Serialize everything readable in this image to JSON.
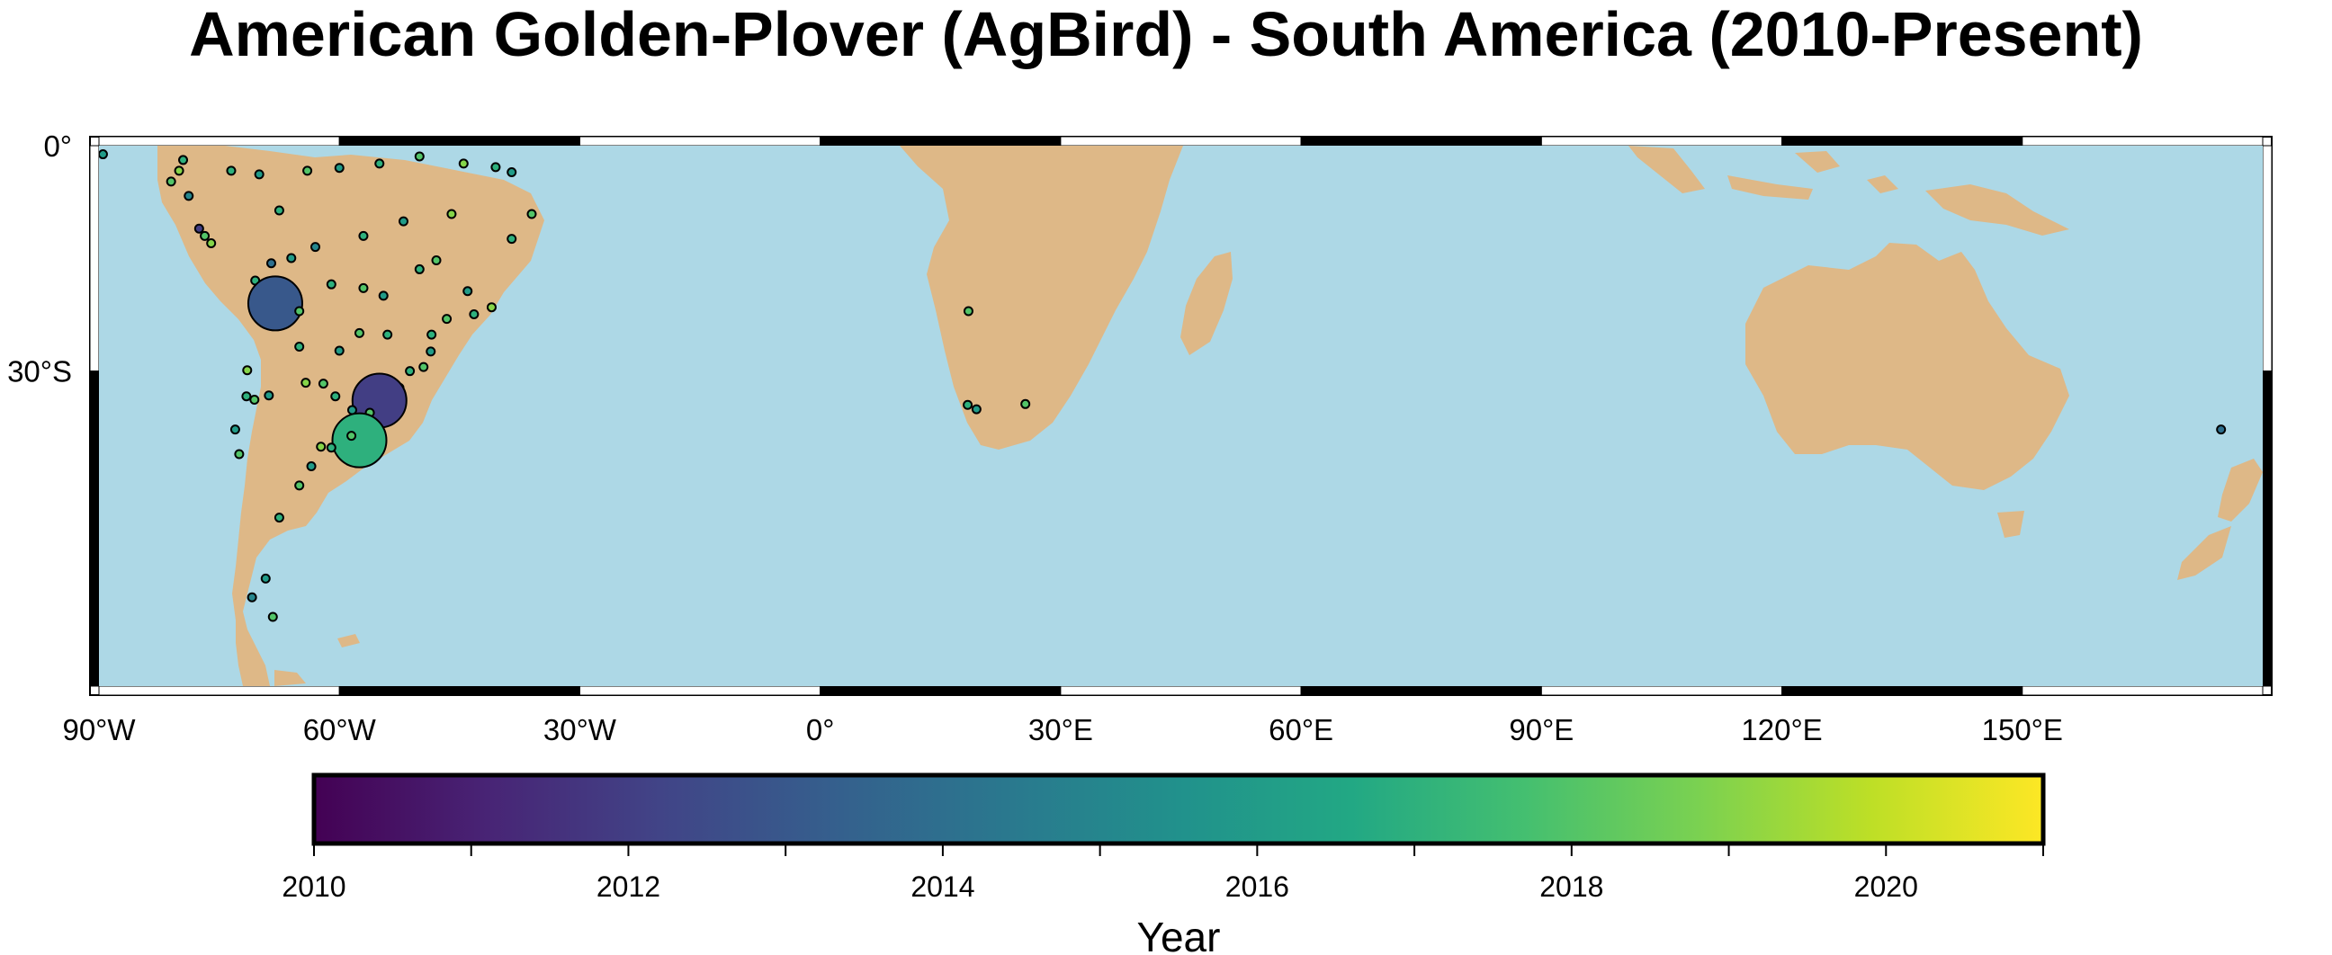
{
  "title": "American Golden-Plover (AgBird) - South America (2010-Present)",
  "map": {
    "projection": "Mercator",
    "lon_range": [
      -90,
      180
    ],
    "lat_range": [
      -60,
      0
    ],
    "ocean_color": "#ADD8E6",
    "land_color": "#DEB887",
    "frame_style": "checkerboard",
    "x_tick_labels": [
      "90°W",
      "60°W",
      "30°W",
      "0°",
      "30°E",
      "60°E",
      "90°E",
      "120°E",
      "150°E"
    ],
    "x_tick_values": [
      -90,
      -60,
      -30,
      0,
      30,
      60,
      90,
      120,
      150
    ],
    "y_tick_labels": [
      "0°",
      "30°S"
    ],
    "y_tick_values": [
      0,
      -30
    ]
  },
  "chart_data": {
    "type": "scatter",
    "x_unit": "degrees longitude",
    "y_unit": "degrees latitude",
    "color_by": "Year",
    "size_note": "larger circles mark clustered records",
    "points": [
      {
        "lon": -89.5,
        "lat": -1.2,
        "year": 2016,
        "size": "small"
      },
      {
        "lon": -81.0,
        "lat": -5.0,
        "year": 2018,
        "size": "small"
      },
      {
        "lon": -80.0,
        "lat": -3.5,
        "year": 2019,
        "size": "small"
      },
      {
        "lon": -79.5,
        "lat": -2.0,
        "year": 2017,
        "size": "small"
      },
      {
        "lon": -78.8,
        "lat": -7.0,
        "year": 2015,
        "size": "small"
      },
      {
        "lon": -77.5,
        "lat": -11.5,
        "year": 2012,
        "size": "small"
      },
      {
        "lon": -76.8,
        "lat": -12.5,
        "year": 2018,
        "size": "small"
      },
      {
        "lon": -76.0,
        "lat": -13.5,
        "year": 2019,
        "size": "small"
      },
      {
        "lon": -73.5,
        "lat": -3.5,
        "year": 2017,
        "size": "small"
      },
      {
        "lon": -70.0,
        "lat": -4.0,
        "year": 2016,
        "size": "small"
      },
      {
        "lon": -67.5,
        "lat": -9.0,
        "year": 2017,
        "size": "small"
      },
      {
        "lon": -64.0,
        "lat": -3.5,
        "year": 2018,
        "size": "small"
      },
      {
        "lon": -60.0,
        "lat": -3.1,
        "year": 2016,
        "size": "small"
      },
      {
        "lon": -55.0,
        "lat": -2.5,
        "year": 2017,
        "size": "small"
      },
      {
        "lon": -50.0,
        "lat": -1.5,
        "year": 2018,
        "size": "small"
      },
      {
        "lon": -44.5,
        "lat": -2.5,
        "year": 2019,
        "size": "small"
      },
      {
        "lon": -40.5,
        "lat": -3.0,
        "year": 2017,
        "size": "small"
      },
      {
        "lon": -38.5,
        "lat": -3.7,
        "year": 2016,
        "size": "small"
      },
      {
        "lon": -36.0,
        "lat": -9.5,
        "year": 2018,
        "size": "small"
      },
      {
        "lon": -38.5,
        "lat": -12.9,
        "year": 2017,
        "size": "small"
      },
      {
        "lon": -46.0,
        "lat": -9.5,
        "year": 2019,
        "size": "small"
      },
      {
        "lon": -52.0,
        "lat": -10.5,
        "year": 2016,
        "size": "small"
      },
      {
        "lon": -57.0,
        "lat": -12.5,
        "year": 2017,
        "size": "small"
      },
      {
        "lon": -63.0,
        "lat": -14.0,
        "year": 2015,
        "size": "small"
      },
      {
        "lon": -66.0,
        "lat": -15.5,
        "year": 2016,
        "size": "small"
      },
      {
        "lon": -68.5,
        "lat": -16.2,
        "year": 2014,
        "size": "small"
      },
      {
        "lon": -70.5,
        "lat": -18.5,
        "year": 2017,
        "size": "small"
      },
      {
        "lon": -70.2,
        "lat": -20.2,
        "year": 2018,
        "size": "small"
      },
      {
        "lon": -68.0,
        "lat": -21.5,
        "year": 2013,
        "size": "large"
      },
      {
        "lon": -65.0,
        "lat": -22.5,
        "year": 2018,
        "size": "small"
      },
      {
        "lon": -61.0,
        "lat": -19.0,
        "year": 2017,
        "size": "small"
      },
      {
        "lon": -57.0,
        "lat": -19.5,
        "year": 2018,
        "size": "small"
      },
      {
        "lon": -54.5,
        "lat": -20.5,
        "year": 2016,
        "size": "small"
      },
      {
        "lon": -50.0,
        "lat": -17.0,
        "year": 2017,
        "size": "small"
      },
      {
        "lon": -47.9,
        "lat": -15.8,
        "year": 2018,
        "size": "small"
      },
      {
        "lon": -44.0,
        "lat": -19.9,
        "year": 2016,
        "size": "small"
      },
      {
        "lon": -43.2,
        "lat": -22.9,
        "year": 2017,
        "size": "small"
      },
      {
        "lon": -41.0,
        "lat": -22.0,
        "year": 2019,
        "size": "small"
      },
      {
        "lon": -46.6,
        "lat": -23.5,
        "year": 2018,
        "size": "small"
      },
      {
        "lon": -48.5,
        "lat": -25.5,
        "year": 2017,
        "size": "small"
      },
      {
        "lon": -48.6,
        "lat": -27.6,
        "year": 2016,
        "size": "small"
      },
      {
        "lon": -49.5,
        "lat": -29.5,
        "year": 2018,
        "size": "small"
      },
      {
        "lon": -51.2,
        "lat": -30.0,
        "year": 2017,
        "size": "small"
      },
      {
        "lon": -52.5,
        "lat": -32.0,
        "year": 2019,
        "size": "small"
      },
      {
        "lon": -55.0,
        "lat": -33.5,
        "year": 2012,
        "size": "large"
      },
      {
        "lon": -56.2,
        "lat": -34.9,
        "year": 2018,
        "size": "small"
      },
      {
        "lon": -58.4,
        "lat": -34.6,
        "year": 2016,
        "size": "small"
      },
      {
        "lon": -60.5,
        "lat": -33.0,
        "year": 2017,
        "size": "small"
      },
      {
        "lon": -62.0,
        "lat": -31.5,
        "year": 2018,
        "size": "small"
      },
      {
        "lon": -64.2,
        "lat": -31.4,
        "year": 2019,
        "size": "small"
      },
      {
        "lon": -65.0,
        "lat": -27.0,
        "year": 2017,
        "size": "small"
      },
      {
        "lon": -60.0,
        "lat": -27.5,
        "year": 2016,
        "size": "small"
      },
      {
        "lon": -57.5,
        "lat": -25.3,
        "year": 2018,
        "size": "small"
      },
      {
        "lon": -54.0,
        "lat": -25.5,
        "year": 2017,
        "size": "small"
      },
      {
        "lon": -68.8,
        "lat": -32.9,
        "year": 2016,
        "size": "small"
      },
      {
        "lon": -70.6,
        "lat": -33.4,
        "year": 2018,
        "size": "small"
      },
      {
        "lon": -71.6,
        "lat": -33.0,
        "year": 2017,
        "size": "small"
      },
      {
        "lon": -71.5,
        "lat": -29.9,
        "year": 2019,
        "size": "small"
      },
      {
        "lon": -73.0,
        "lat": -36.8,
        "year": 2016,
        "size": "small"
      },
      {
        "lon": -72.5,
        "lat": -39.5,
        "year": 2018,
        "size": "small"
      },
      {
        "lon": -57.5,
        "lat": -38.0,
        "year": 2017,
        "size": "large"
      },
      {
        "lon": -58.5,
        "lat": -37.5,
        "year": 2018,
        "size": "small"
      },
      {
        "lon": -61.0,
        "lat": -38.8,
        "year": 2017,
        "size": "small"
      },
      {
        "lon": -62.3,
        "lat": -38.7,
        "year": 2019,
        "size": "small"
      },
      {
        "lon": -63.5,
        "lat": -40.8,
        "year": 2016,
        "size": "small"
      },
      {
        "lon": -65.0,
        "lat": -42.8,
        "year": 2018,
        "size": "small"
      },
      {
        "lon": -67.5,
        "lat": -46.0,
        "year": 2017,
        "size": "small"
      },
      {
        "lon": -69.2,
        "lat": -51.6,
        "year": 2016,
        "size": "small"
      },
      {
        "lon": -68.3,
        "lat": -54.8,
        "year": 2018,
        "size": "small"
      },
      {
        "lon": -70.9,
        "lat": -53.2,
        "year": 2015,
        "size": "small"
      },
      {
        "lon": 18.5,
        "lat": -22.5,
        "year": 2018,
        "size": "small"
      },
      {
        "lon": 18.4,
        "lat": -34.0,
        "year": 2017,
        "size": "small"
      },
      {
        "lon": 19.5,
        "lat": -34.5,
        "year": 2016,
        "size": "small"
      },
      {
        "lon": 25.6,
        "lat": -33.9,
        "year": 2018,
        "size": "small"
      },
      {
        "lon": 174.8,
        "lat": -36.8,
        "year": 2014,
        "size": "small"
      }
    ]
  },
  "colorbar": {
    "title": "Year",
    "colormap": "viridis",
    "range": [
      2010,
      2021
    ],
    "tick_labels": [
      "2010",
      "2012",
      "2014",
      "2016",
      "2018",
      "2020"
    ],
    "tick_values": [
      2010,
      2012,
      2014,
      2016,
      2018,
      2020
    ],
    "minor_tick_values": [
      2011,
      2013,
      2015,
      2017,
      2019,
      2021
    ]
  }
}
